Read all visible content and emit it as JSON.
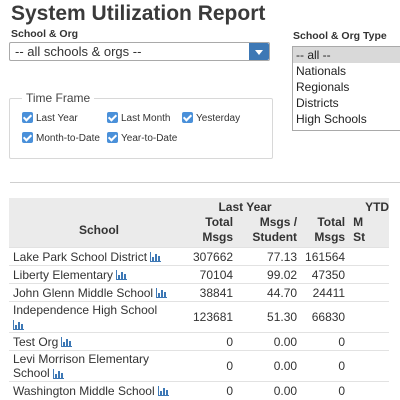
{
  "page_title": "System Utilization Report",
  "filters": {
    "school_org_label": "School & Org",
    "school_org_value": "-- all schools & orgs --",
    "type_label": "School & Org Type",
    "type_options": [
      "-- all --",
      "Nationals",
      "Regionals",
      "Districts",
      "High Schools"
    ],
    "type_selected": "-- all --"
  },
  "time_frame": {
    "legend": "Time Frame",
    "options": [
      {
        "label": "Last Year",
        "checked": true
      },
      {
        "label": "Last Month",
        "checked": true
      },
      {
        "label": "Yesterday",
        "checked": true
      },
      {
        "label": "Month-to-Date",
        "checked": true
      },
      {
        "label": "Year-to-Date",
        "checked": true
      }
    ]
  },
  "table": {
    "group_last_year": "Last Year",
    "group_ytd": "YTD",
    "col_school": "School",
    "col_total_msgs_1": "Total",
    "col_total_msgs_2": "Msgs",
    "col_msgs_student_1": "Msgs /",
    "col_msgs_student_2": "Student",
    "col_ytd_total_1": "Total",
    "col_ytd_total_2": "Msgs",
    "col_ytd_m_1": "M",
    "col_ytd_m_2": "St",
    "rows": [
      {
        "name": "Lake Park School District",
        "total": "307662",
        "per_student": "77.13",
        "ytd_total": "161564"
      },
      {
        "name": "Liberty Elementary",
        "total": "70104",
        "per_student": "99.02",
        "ytd_total": "47350"
      },
      {
        "name": "John Glenn Middle School",
        "total": "38841",
        "per_student": "44.70",
        "ytd_total": "24411"
      },
      {
        "name": "Independence High School",
        "total": "123681",
        "per_student": "51.30",
        "ytd_total": "66830"
      },
      {
        "name": "Test Org",
        "total": "0",
        "per_student": "0.00",
        "ytd_total": "0"
      },
      {
        "name": "Levi Morrison Elementary School",
        "total": "0",
        "per_student": "0.00",
        "ytd_total": "0"
      },
      {
        "name": "Washington Middle School",
        "total": "0",
        "per_student": "0.00",
        "ytd_total": "0"
      }
    ]
  },
  "icons": {
    "row_chart": "bar-chart-icon"
  },
  "colors": {
    "accent": "#3d78b5",
    "checkbox": "#4a90d9",
    "header_bg": "#ebebeb"
  }
}
